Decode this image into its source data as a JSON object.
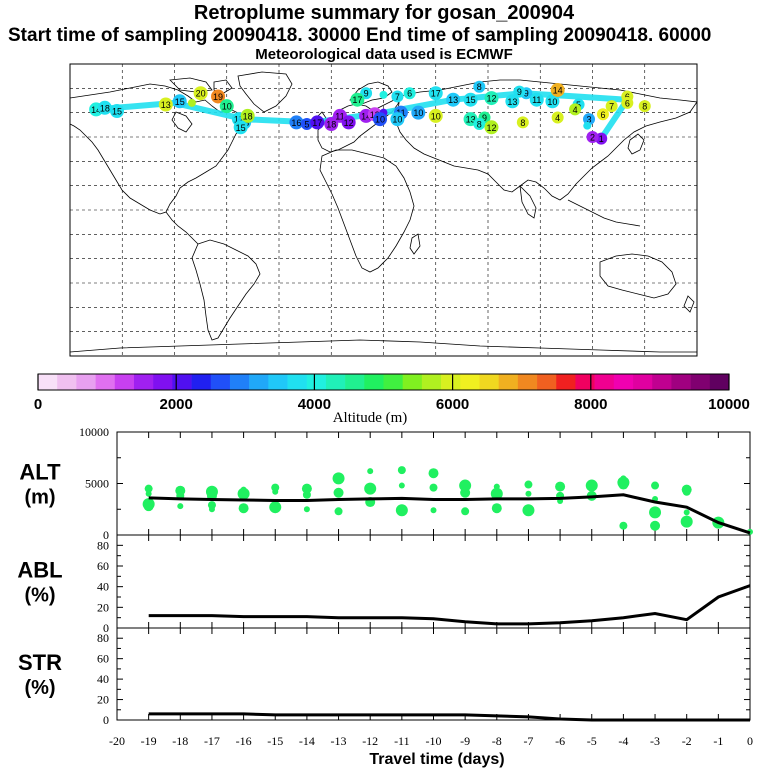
{
  "header": {
    "title": "Retroplume summary for gosan_200904",
    "sampling_line": "Start time of sampling 20090418. 30000     End time of sampling 20090418. 60000",
    "met_line": "Meteorological data used is ECMWF"
  },
  "colorbar": {
    "label": "Altitude (m)",
    "ticks": [
      "0",
      "2000",
      "4000",
      "6000",
      "8000",
      "10000"
    ],
    "colors": [
      "#f8e0f8",
      "#f0c0f0",
      "#e8a0f0",
      "#e070f0",
      "#c840f0",
      "#a020f0",
      "#8010f0",
      "#5010f0",
      "#2020f0",
      "#2050f8",
      "#2080f8",
      "#20a8f8",
      "#20c8f8",
      "#20e0f0",
      "#20f0e0",
      "#20f0b8",
      "#20f090",
      "#20f060",
      "#40f040",
      "#80f020",
      "#b0f020",
      "#d8f020",
      "#f0f020",
      "#f0d820",
      "#f0b020",
      "#f08820",
      "#f06020",
      "#f02020",
      "#f00060",
      "#f00090",
      "#f000b0",
      "#e000a0",
      "#c00090",
      "#a00080",
      "#800070",
      "#600060"
    ]
  },
  "map": {
    "points": [
      {
        "lon": -165,
        "lat": 62,
        "alt": 3900,
        "label": "14"
      },
      {
        "lon": -160,
        "lat": 63,
        "alt": 3700,
        "label": "18"
      },
      {
        "lon": -153,
        "lat": 61,
        "alt": 3800,
        "label": "15"
      },
      {
        "lon": -125,
        "lat": 65,
        "alt": 6000,
        "label": "13"
      },
      {
        "lon": -117,
        "lat": 67,
        "alt": 3500,
        "label": "15"
      },
      {
        "lon": -110,
        "lat": 66,
        "alt": 5800,
        "label": ""
      },
      {
        "lon": -105,
        "lat": 72,
        "alt": 6100,
        "label": "20"
      },
      {
        "lon": -95,
        "lat": 70,
        "alt": 7000,
        "label": "19"
      },
      {
        "lon": -90,
        "lat": 64,
        "alt": 4500,
        "label": "10"
      },
      {
        "lon": -83,
        "lat": 56,
        "alt": 3800,
        "label": "18"
      },
      {
        "lon": -80,
        "lat": 54,
        "alt": 3500,
        "label": "18"
      },
      {
        "lon": -78,
        "lat": 58,
        "alt": 5800,
        "label": "18"
      },
      {
        "lon": -82,
        "lat": 51,
        "alt": 3800,
        "label": "15"
      },
      {
        "lon": -50,
        "lat": 54,
        "alt": 2800,
        "label": "16"
      },
      {
        "lon": -44,
        "lat": 53,
        "alt": 2700,
        "label": "5"
      },
      {
        "lon": -38,
        "lat": 54,
        "alt": 2100,
        "label": "17"
      },
      {
        "lon": -30,
        "lat": 53,
        "alt": 1600,
        "label": "18"
      },
      {
        "lon": -25,
        "lat": 58,
        "alt": 1400,
        "label": "11"
      },
      {
        "lon": -10,
        "lat": 58,
        "alt": 1500,
        "label": "14"
      },
      {
        "lon": -5,
        "lat": 59,
        "alt": 1300,
        "label": "13"
      },
      {
        "lon": 0,
        "lat": 60,
        "alt": 2100,
        "label": ""
      },
      {
        "lon": 10,
        "lat": 60,
        "alt": 2800,
        "label": "11"
      },
      {
        "lon": 20,
        "lat": 60,
        "alt": 3300,
        "label": "10"
      },
      {
        "lon": -20,
        "lat": 54,
        "alt": 1700,
        "label": "12"
      },
      {
        "lon": -2,
        "lat": 56,
        "alt": 2600,
        "label": "10"
      },
      {
        "lon": 8,
        "lat": 56,
        "alt": 3500,
        "label": "10"
      },
      {
        "lon": 30,
        "lat": 58,
        "alt": 6000,
        "label": "10"
      },
      {
        "lon": 55,
        "lat": 76,
        "alt": 3500,
        "label": "8"
      },
      {
        "lon": -10,
        "lat": 72,
        "alt": 3800,
        "label": "9"
      },
      {
        "lon": -15,
        "lat": 68,
        "alt": 4500,
        "label": "17"
      },
      {
        "lon": 0,
        "lat": 71,
        "alt": 4000,
        "label": ""
      },
      {
        "lon": 8,
        "lat": 70,
        "alt": 3700,
        "label": "7"
      },
      {
        "lon": 15,
        "lat": 72,
        "alt": 3900,
        "label": "6"
      },
      {
        "lon": 30,
        "lat": 72,
        "alt": 3800,
        "label": "17"
      },
      {
        "lon": 40,
        "lat": 68,
        "alt": 3500,
        "label": "13"
      },
      {
        "lon": 50,
        "lat": 68,
        "alt": 3800,
        "label": "15"
      },
      {
        "lon": 62,
        "lat": 69,
        "alt": 4200,
        "label": "12"
      },
      {
        "lon": 82,
        "lat": 72,
        "alt": 3400,
        "label": "9"
      },
      {
        "lon": 78,
        "lat": 73,
        "alt": 3800,
        "label": "9"
      },
      {
        "lon": 88,
        "lat": 68,
        "alt": 3700,
        "label": "11"
      },
      {
        "lon": 97,
        "lat": 67,
        "alt": 3800,
        "label": "10"
      },
      {
        "lon": 74,
        "lat": 67,
        "alt": 3800,
        "label": "13"
      },
      {
        "lon": 100,
        "lat": 74,
        "alt": 6800,
        "label": "14"
      },
      {
        "lon": 112,
        "lat": 65,
        "alt": 3700,
        "label": "5"
      },
      {
        "lon": 110,
        "lat": 62,
        "alt": 5800,
        "label": "4"
      },
      {
        "lon": 100,
        "lat": 57,
        "alt": 6000,
        "label": "4"
      },
      {
        "lon": 118,
        "lat": 56,
        "alt": 3100,
        "label": "3"
      },
      {
        "lon": 125,
        "lat": 44,
        "alt": 1800,
        "label": "1"
      },
      {
        "lon": 120,
        "lat": 45,
        "alt": 1600,
        "label": "2"
      },
      {
        "lon": 117,
        "lat": 52,
        "alt": 3800,
        "label": ""
      },
      {
        "lon": 58,
        "lat": 57,
        "alt": 4500,
        "label": "9"
      },
      {
        "lon": 50,
        "lat": 56,
        "alt": 4200,
        "label": "13"
      },
      {
        "lon": 55,
        "lat": 53,
        "alt": 4100,
        "label": "8"
      },
      {
        "lon": 62,
        "lat": 51,
        "alt": 5800,
        "label": "12"
      },
      {
        "lon": 80,
        "lat": 54,
        "alt": 6000,
        "label": "8"
      },
      {
        "lon": 126,
        "lat": 59,
        "alt": 6200,
        "label": "6"
      },
      {
        "lon": 131,
        "lat": 64,
        "alt": 6000,
        "label": "7"
      },
      {
        "lon": 140,
        "lat": 70,
        "alt": 6100,
        "label": "6"
      },
      {
        "lon": 140,
        "lat": 66,
        "alt": 6000,
        "label": "6"
      },
      {
        "lon": 150,
        "lat": 64,
        "alt": 6100,
        "label": "8"
      }
    ]
  },
  "chart_data": [
    {
      "type": "scatter",
      "ylabel": "ALT (m)",
      "ylim": [
        0,
        10000
      ],
      "yticks": [
        "10000",
        "5000",
        "0"
      ],
      "xlim": [
        -20,
        0
      ],
      "mean_line": {
        "x": [
          -19,
          -18,
          -17,
          -16,
          -15,
          -14,
          -13,
          -12,
          -11,
          -10,
          -9,
          -8,
          -7,
          -6,
          -5,
          -4,
          -3,
          -2,
          -1,
          0
        ],
        "y": [
          3600,
          3500,
          3450,
          3400,
          3350,
          3350,
          3450,
          3500,
          3550,
          3450,
          3450,
          3500,
          3500,
          3550,
          3700,
          3900,
          3200,
          2700,
          1200,
          200
        ]
      },
      "cluster_points": [
        {
          "x": -19,
          "y": [
            4500,
            4000,
            3000,
            2800
          ]
        },
        {
          "x": -18,
          "y": [
            4300,
            3800,
            2800
          ]
        },
        {
          "x": -17,
          "y": [
            4200,
            3800,
            2900,
            2500
          ]
        },
        {
          "x": -16,
          "y": [
            4400,
            4000,
            2600
          ]
        },
        {
          "x": -15,
          "y": [
            4600,
            4200,
            2700
          ]
        },
        {
          "x": -14,
          "y": [
            4500,
            3900,
            2500
          ]
        },
        {
          "x": -13,
          "y": [
            5500,
            4100,
            2300
          ]
        },
        {
          "x": -12,
          "y": [
            6200,
            4500,
            3200
          ]
        },
        {
          "x": -11,
          "y": [
            6300,
            4800,
            2400
          ]
        },
        {
          "x": -10,
          "y": [
            6000,
            4600,
            2400
          ]
        },
        {
          "x": -9,
          "y": [
            4800,
            4100,
            2300
          ]
        },
        {
          "x": -8,
          "y": [
            4700,
            4000,
            2600
          ]
        },
        {
          "x": -7,
          "y": [
            4900,
            4000,
            2400
          ]
        },
        {
          "x": -6,
          "y": [
            4700,
            3800,
            3300
          ]
        },
        {
          "x": -5,
          "y": [
            4800,
            3800
          ]
        },
        {
          "x": -4,
          "y": [
            5500,
            5100,
            4900,
            900
          ]
        },
        {
          "x": -3,
          "y": [
            4800,
            3500,
            2200,
            900
          ]
        },
        {
          "x": -2,
          "y": [
            4400,
            4200,
            2200,
            1300
          ]
        },
        {
          "x": -1,
          "y": [
            1200
          ]
        },
        {
          "x": 0,
          "y": [
            300
          ]
        }
      ]
    },
    {
      "type": "line",
      "ylabel": "ABL (%)",
      "ylim": [
        0,
        90
      ],
      "yticks": [
        "80",
        "60",
        "40",
        "20",
        "0"
      ],
      "x": [
        -19,
        -18,
        -17,
        -16,
        -15,
        -14,
        -13,
        -12,
        -11,
        -10,
        -9,
        -8,
        -7,
        -6,
        -5,
        -4,
        -3,
        -2,
        -1,
        0
      ],
      "values": [
        12,
        12,
        12,
        11,
        11,
        11,
        10,
        10,
        10,
        9,
        6,
        4,
        4,
        5,
        7,
        10,
        14,
        8,
        30,
        41
      ]
    },
    {
      "type": "line",
      "ylabel": "STR (%)",
      "ylim": [
        0,
        90
      ],
      "yticks": [
        "80",
        "60",
        "40",
        "20",
        "0"
      ],
      "xlabel": "Travel time (days)",
      "xticks": [
        "-20",
        "-19",
        "-18",
        "-17",
        "-16",
        "-15",
        "-14",
        "-13",
        "-12",
        "-11",
        "-10",
        "-9",
        "-8",
        "-7",
        "-6",
        "-5",
        "-4",
        "-3",
        "-2",
        "-1",
        "0"
      ],
      "x": [
        -19,
        -18,
        -17,
        -16,
        -15,
        -14,
        -13,
        -12,
        -11,
        -10,
        -9,
        -8,
        -7,
        -6,
        -5,
        -4,
        -3,
        -2,
        -1,
        0
      ],
      "values": [
        6,
        6,
        6,
        6,
        5,
        5,
        5,
        5,
        5,
        5,
        5,
        4,
        3,
        1,
        0,
        0,
        0,
        0,
        0,
        0
      ]
    }
  ]
}
